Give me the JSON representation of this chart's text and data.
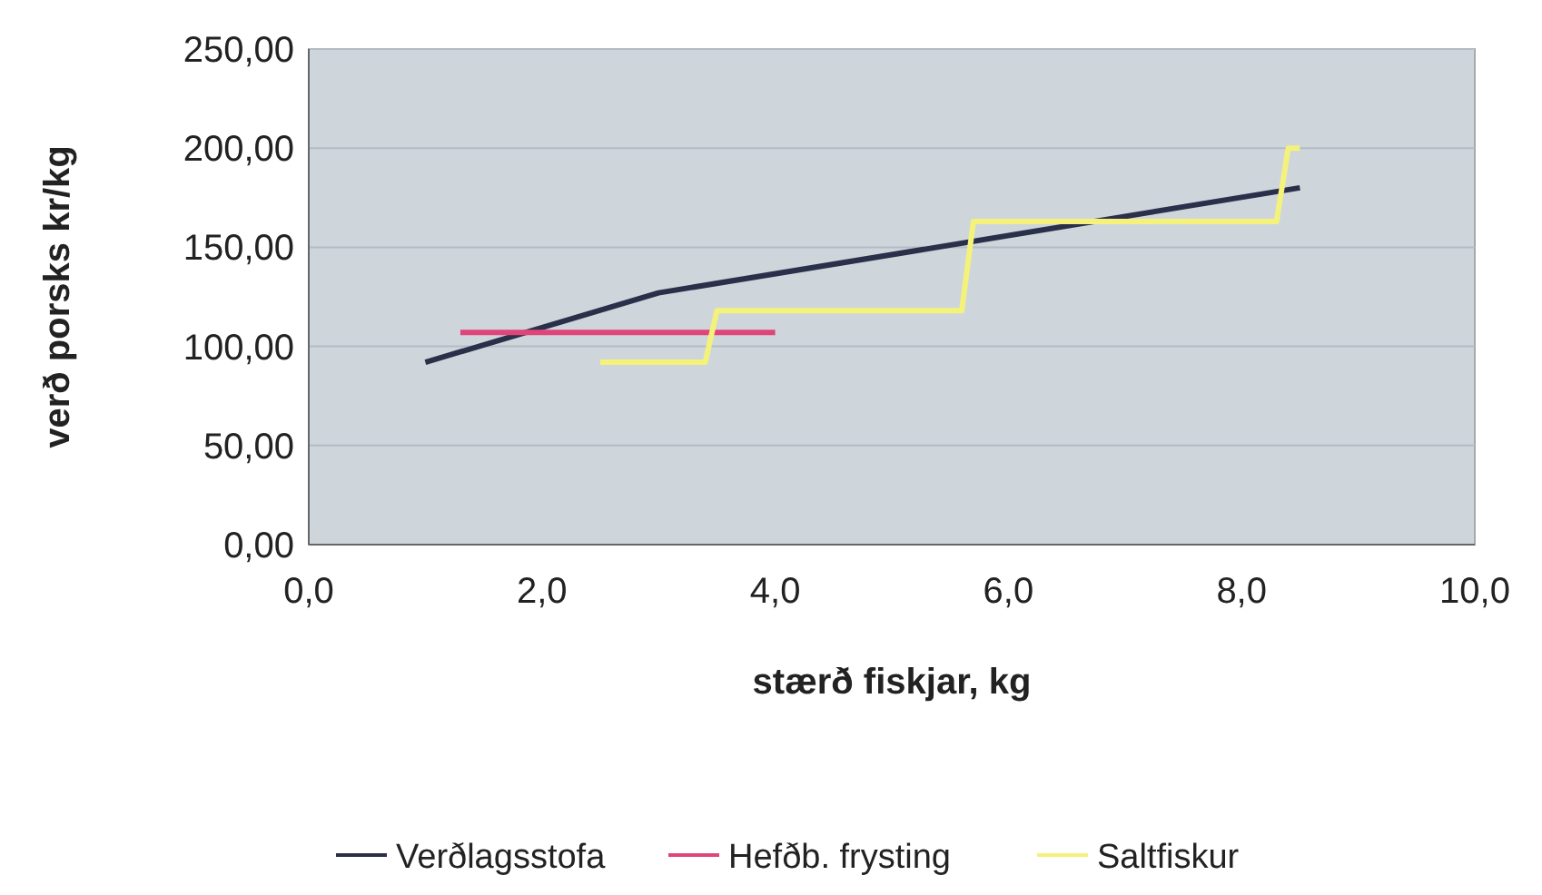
{
  "chart_data": {
    "type": "line",
    "xlabel": "stærð fiskjar, kg",
    "ylabel": "verð porsks kr/kg",
    "xlim": [
      0,
      10
    ],
    "ylim": [
      0,
      250
    ],
    "xticks": [
      {
        "value": 0,
        "label": "0,0"
      },
      {
        "value": 2,
        "label": "2,0"
      },
      {
        "value": 4,
        "label": "4,0"
      },
      {
        "value": 6,
        "label": "6,0"
      },
      {
        "value": 8,
        "label": "8,0"
      },
      {
        "value": 10,
        "label": "10,0"
      }
    ],
    "yticks": [
      {
        "value": 0,
        "label": "0,00"
      },
      {
        "value": 50,
        "label": "50,00"
      },
      {
        "value": 100,
        "label": "100,00"
      },
      {
        "value": 150,
        "label": "150,00"
      },
      {
        "value": 200,
        "label": "200,00"
      },
      {
        "value": 250,
        "label": "250,00"
      }
    ],
    "grid": "y",
    "legend": "bottom",
    "marker": "none",
    "line_style": "solid",
    "series": [
      {
        "name": "Verðlagsstofa",
        "color": "#2a2f4a",
        "x": [
          1,
          3,
          8.5
        ],
        "values": [
          92,
          127,
          180
        ]
      },
      {
        "name": "Hefðb. frysting",
        "color": "#e0457a",
        "x": [
          1.3,
          4
        ],
        "values": [
          107,
          107
        ]
      },
      {
        "name": "Saltfiskur",
        "color": "#f4f27a",
        "x": [
          2.5,
          3.4,
          3.5,
          5.6,
          5.7,
          8.3,
          8.4,
          8.5
        ],
        "values": [
          92,
          92,
          118,
          118,
          163,
          163,
          200,
          200
        ]
      }
    ]
  }
}
